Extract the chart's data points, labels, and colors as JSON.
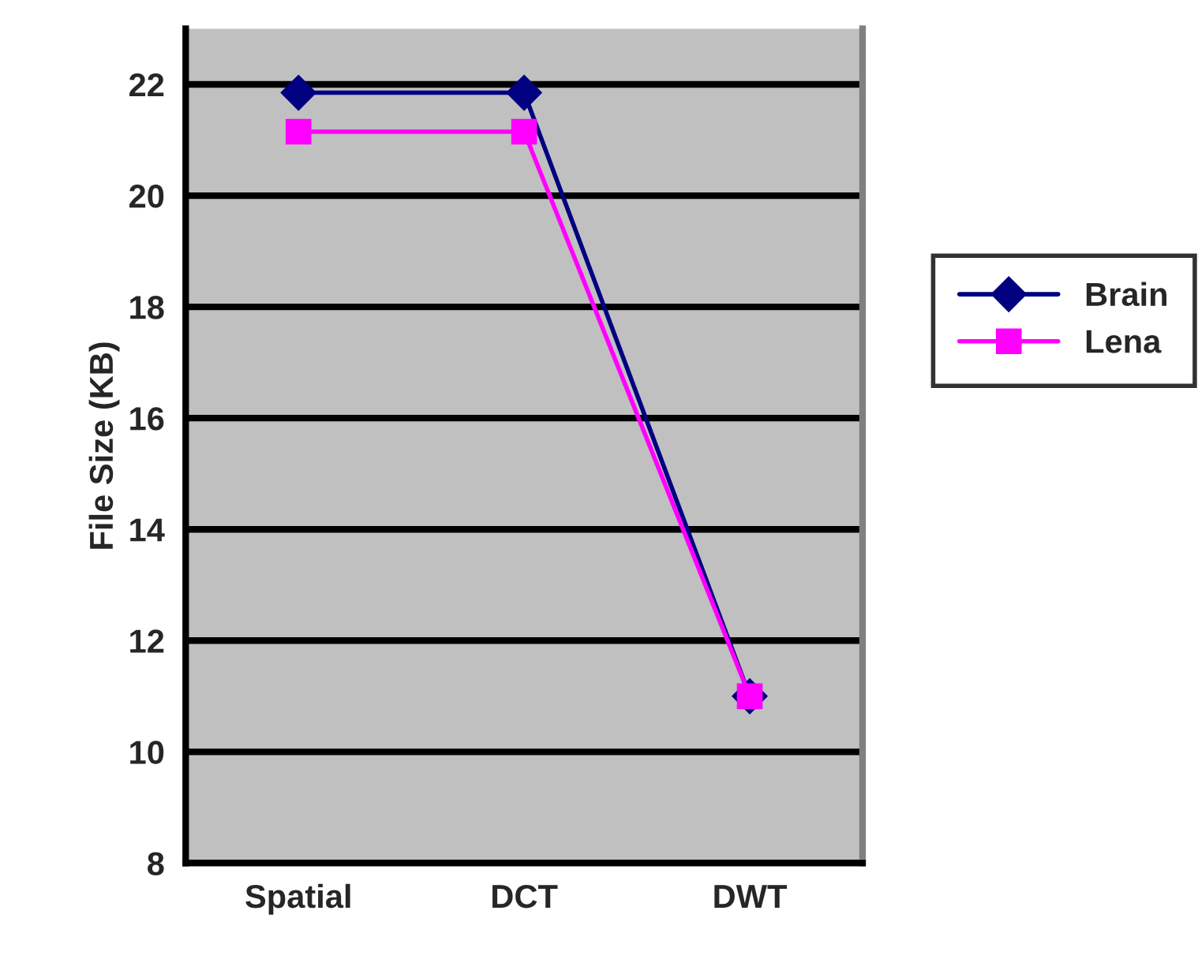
{
  "chart_data": {
    "type": "line",
    "ylabel": "File Size (KB)",
    "categories": [
      "Spatial",
      "DCT",
      "DWT"
    ],
    "series": [
      {
        "name": "Brain",
        "color": "#000080",
        "values": [
          21.85,
          21.85,
          11
        ],
        "marker": "diamond"
      },
      {
        "name": "Lena",
        "color": "#ff00ff",
        "values": [
          21.15,
          21.15,
          11
        ],
        "marker": "square"
      }
    ],
    "ylim": [
      8,
      23
    ],
    "yticks": [
      8,
      10,
      12,
      14,
      16,
      18,
      20,
      22
    ],
    "grid": "y",
    "legend": "right",
    "line_style": "solid"
  }
}
